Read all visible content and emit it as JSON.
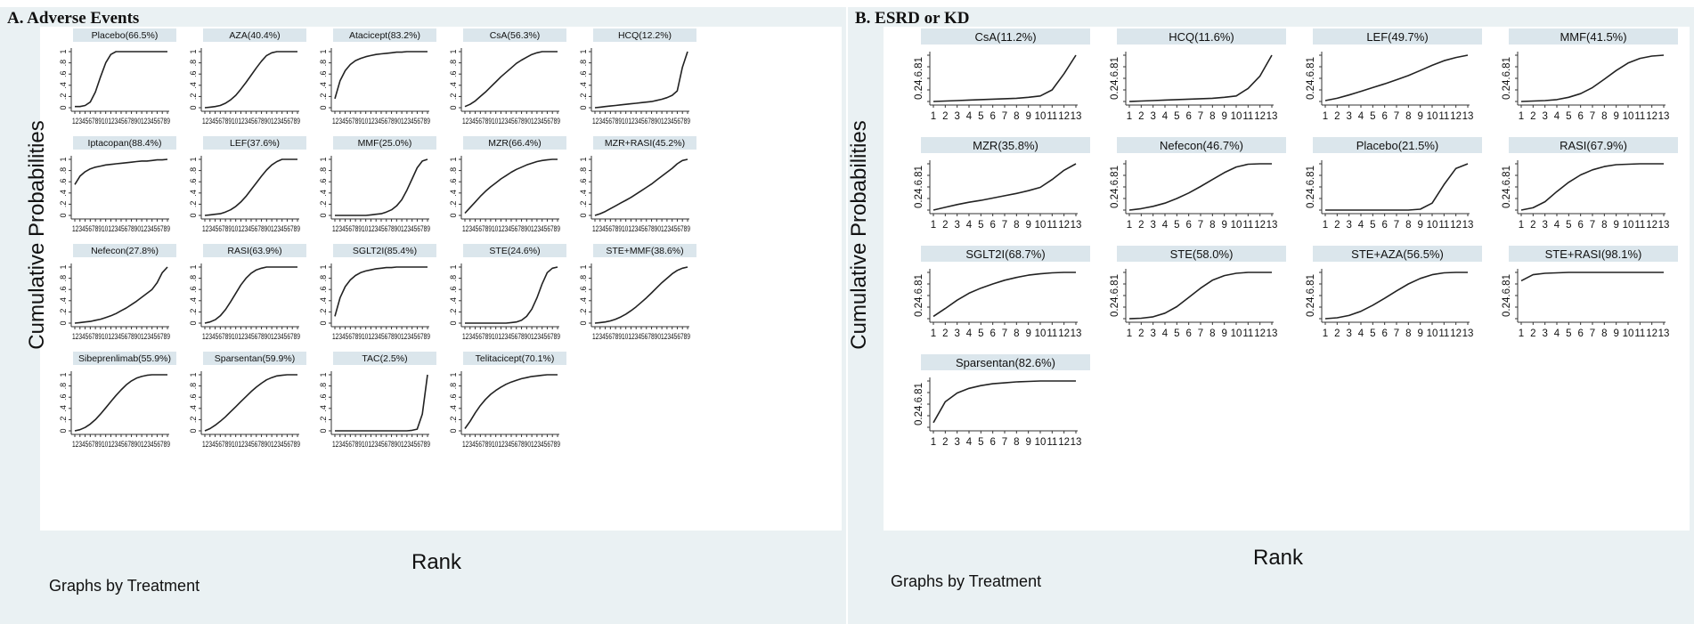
{
  "chart_data": [
    {
      "panel": "A",
      "title": "A. Adverse Events",
      "type": "line",
      "ylabel": "Cumulative Probabilities",
      "xlabel": "Rank",
      "note": "Graphs by Treatment",
      "x_tick_labels": "123456789101234567890123456789",
      "y_ticks": [
        "0",
        ".2",
        ".4",
        ".6",
        ".8",
        "1"
      ],
      "subplots": [
        {
          "label": "Placebo(66.5%)",
          "values": [
            0.02,
            0.02,
            0.04,
            0.1,
            0.28,
            0.55,
            0.8,
            0.95,
            1,
            1,
            1,
            1,
            1,
            1,
            1,
            1,
            1,
            1,
            1
          ]
        },
        {
          "label": "AZA(40.4%)",
          "values": [
            0,
            0.01,
            0.02,
            0.04,
            0.08,
            0.14,
            0.22,
            0.33,
            0.45,
            0.58,
            0.71,
            0.83,
            0.93,
            0.98,
            1,
            1,
            1,
            1,
            1
          ]
        },
        {
          "label": "Atacicept(83.2%)",
          "values": [
            0.16,
            0.48,
            0.66,
            0.77,
            0.84,
            0.88,
            0.91,
            0.93,
            0.95,
            0.96,
            0.97,
            0.98,
            0.99,
            0.99,
            1,
            1,
            1,
            1,
            1
          ]
        },
        {
          "label": "CsA(56.3%)",
          "values": [
            0.02,
            0.06,
            0.12,
            0.2,
            0.28,
            0.37,
            0.46,
            0.55,
            0.63,
            0.71,
            0.79,
            0.85,
            0.9,
            0.95,
            0.98,
            1,
            1,
            1,
            1
          ]
        },
        {
          "label": "HCQ(12.2%)",
          "values": [
            0,
            0.01,
            0.02,
            0.03,
            0.04,
            0.05,
            0.06,
            0.07,
            0.08,
            0.09,
            0.1,
            0.11,
            0.13,
            0.15,
            0.18,
            0.22,
            0.3,
            0.72,
            1
          ]
        },
        {
          "label": "Iptacopan(88.4%)",
          "values": [
            0.55,
            0.7,
            0.78,
            0.83,
            0.86,
            0.88,
            0.9,
            0.91,
            0.92,
            0.93,
            0.94,
            0.95,
            0.96,
            0.97,
            0.97,
            0.98,
            0.99,
            0.99,
            1
          ]
        },
        {
          "label": "LEF(37.6%)",
          "values": [
            0,
            0.01,
            0.02,
            0.03,
            0.06,
            0.1,
            0.16,
            0.24,
            0.34,
            0.46,
            0.58,
            0.7,
            0.81,
            0.9,
            0.96,
            1,
            1,
            1,
            1
          ]
        },
        {
          "label": "MMF(25.0%)",
          "values": [
            0,
            0,
            0,
            0,
            0,
            0,
            0,
            0.01,
            0.02,
            0.03,
            0.06,
            0.1,
            0.17,
            0.28,
            0.45,
            0.65,
            0.85,
            0.97,
            1
          ]
        },
        {
          "label": "MZR(66.4%)",
          "values": [
            0.04,
            0.14,
            0.24,
            0.34,
            0.43,
            0.51,
            0.58,
            0.65,
            0.71,
            0.77,
            0.82,
            0.86,
            0.9,
            0.93,
            0.96,
            0.98,
            0.99,
            1,
            1
          ]
        },
        {
          "label": "MZR+RASI(45.2%)",
          "values": [
            0,
            0.03,
            0.07,
            0.12,
            0.17,
            0.22,
            0.27,
            0.32,
            0.38,
            0.44,
            0.5,
            0.56,
            0.63,
            0.7,
            0.77,
            0.84,
            0.92,
            0.98,
            1
          ]
        },
        {
          "label": "Nefecon(27.8%)",
          "values": [
            0,
            0.01,
            0.02,
            0.03,
            0.05,
            0.07,
            0.1,
            0.13,
            0.17,
            0.22,
            0.27,
            0.33,
            0.39,
            0.46,
            0.53,
            0.6,
            0.72,
            0.9,
            1
          ]
        },
        {
          "label": "RASI(63.9%)",
          "values": [
            0,
            0.02,
            0.06,
            0.13,
            0.24,
            0.38,
            0.53,
            0.68,
            0.8,
            0.89,
            0.95,
            0.98,
            1,
            1,
            1,
            1,
            1,
            1,
            1
          ]
        },
        {
          "label": "SGLT2I(85.4%)",
          "values": [
            0.12,
            0.45,
            0.65,
            0.77,
            0.85,
            0.9,
            0.93,
            0.95,
            0.97,
            0.98,
            0.99,
            0.99,
            1,
            1,
            1,
            1,
            1,
            1,
            1
          ]
        },
        {
          "label": "STE(24.6%)",
          "values": [
            0,
            0,
            0,
            0,
            0,
            0,
            0,
            0,
            0,
            0.01,
            0.02,
            0.05,
            0.12,
            0.25,
            0.45,
            0.7,
            0.9,
            0.98,
            1
          ]
        },
        {
          "label": "STE+MMF(38.6%)",
          "values": [
            0,
            0.01,
            0.02,
            0.04,
            0.07,
            0.11,
            0.16,
            0.22,
            0.29,
            0.37,
            0.45,
            0.54,
            0.63,
            0.72,
            0.8,
            0.88,
            0.94,
            0.98,
            1
          ]
        },
        {
          "label": "Sibeprenlimab(55.9%)",
          "values": [
            0,
            0.02,
            0.06,
            0.12,
            0.2,
            0.3,
            0.41,
            0.52,
            0.63,
            0.73,
            0.82,
            0.89,
            0.94,
            0.97,
            0.99,
            1,
            1,
            1,
            1
          ]
        },
        {
          "label": "Sparsentan(59.9%)",
          "values": [
            0,
            0.04,
            0.1,
            0.17,
            0.25,
            0.34,
            0.43,
            0.52,
            0.61,
            0.7,
            0.78,
            0.85,
            0.91,
            0.95,
            0.98,
            0.99,
            1,
            1,
            1
          ]
        },
        {
          "label": "TAC(2.5%)",
          "values": [
            0,
            0,
            0,
            0,
            0,
            0,
            0,
            0,
            0,
            0,
            0,
            0,
            0,
            0,
            0,
            0.01,
            0.03,
            0.3,
            1
          ]
        },
        {
          "label": "Telitacicept(70.1%)",
          "values": [
            0.04,
            0.17,
            0.32,
            0.45,
            0.56,
            0.65,
            0.72,
            0.78,
            0.83,
            0.87,
            0.9,
            0.93,
            0.95,
            0.97,
            0.98,
            0.99,
            1,
            1,
            1
          ]
        }
      ]
    },
    {
      "panel": "B",
      "title": "B. ESRD or KD",
      "type": "line",
      "ylabel": "Cumulative Probabilities",
      "xlabel": "Rank",
      "note": "Graphs by Treatment",
      "x_ticks": [
        "1",
        "2",
        "3",
        "4",
        "5",
        "6",
        "7",
        "8",
        "9",
        "10",
        "11",
        "12",
        "13"
      ],
      "y_tick_label": "0.24.6.81",
      "subplots": [
        {
          "label": "CsA(11.2%)",
          "values": [
            0,
            0.01,
            0.02,
            0.03,
            0.04,
            0.05,
            0.06,
            0.07,
            0.09,
            0.12,
            0.25,
            0.6,
            1
          ]
        },
        {
          "label": "HCQ(11.6%)",
          "values": [
            0,
            0.01,
            0.02,
            0.03,
            0.04,
            0.05,
            0.06,
            0.07,
            0.09,
            0.12,
            0.28,
            0.55,
            1
          ]
        },
        {
          "label": "LEF(49.7%)",
          "values": [
            0.02,
            0.07,
            0.14,
            0.22,
            0.3,
            0.38,
            0.47,
            0.56,
            0.67,
            0.78,
            0.88,
            0.95,
            1
          ]
        },
        {
          "label": "MMF(41.5%)",
          "values": [
            0,
            0.01,
            0.02,
            0.04,
            0.09,
            0.17,
            0.3,
            0.48,
            0.67,
            0.83,
            0.93,
            0.98,
            1
          ]
        },
        {
          "label": "MZR(35.8%)",
          "values": [
            0,
            0.06,
            0.12,
            0.17,
            0.21,
            0.26,
            0.31,
            0.36,
            0.42,
            0.49,
            0.66,
            0.86,
            1
          ]
        },
        {
          "label": "Nefecon(46.7%)",
          "values": [
            0,
            0.03,
            0.08,
            0.15,
            0.25,
            0.37,
            0.51,
            0.66,
            0.81,
            0.93,
            0.99,
            1,
            1
          ]
        },
        {
          "label": "Placebo(21.5%)",
          "values": [
            0,
            0,
            0,
            0,
            0,
            0,
            0,
            0,
            0.02,
            0.15,
            0.55,
            0.9,
            1
          ]
        },
        {
          "label": "RASI(67.9%)",
          "values": [
            0,
            0.05,
            0.18,
            0.4,
            0.6,
            0.76,
            0.87,
            0.94,
            0.98,
            0.99,
            1,
            1,
            1
          ]
        },
        {
          "label": "SGLT2I(68.7%)",
          "values": [
            0.05,
            0.22,
            0.4,
            0.55,
            0.66,
            0.75,
            0.83,
            0.89,
            0.94,
            0.97,
            0.99,
            1,
            1
          ]
        },
        {
          "label": "STE(58.0%)",
          "values": [
            0,
            0.01,
            0.04,
            0.12,
            0.26,
            0.46,
            0.66,
            0.83,
            0.93,
            0.98,
            1,
            1,
            1
          ]
        },
        {
          "label": "STE+AZA(56.5%)",
          "values": [
            0,
            0.02,
            0.07,
            0.16,
            0.29,
            0.44,
            0.6,
            0.75,
            0.87,
            0.95,
            0.99,
            1,
            1
          ]
        },
        {
          "label": "STE+RASI(98.1%)",
          "values": [
            0.82,
            0.95,
            0.98,
            0.99,
            1,
            1,
            1,
            1,
            1,
            1,
            1,
            1,
            1
          ]
        },
        {
          "label": "Sparsentan(82.6%)",
          "values": [
            0.1,
            0.55,
            0.74,
            0.84,
            0.9,
            0.94,
            0.96,
            0.98,
            0.99,
            1,
            1,
            1,
            1
          ]
        }
      ]
    }
  ]
}
